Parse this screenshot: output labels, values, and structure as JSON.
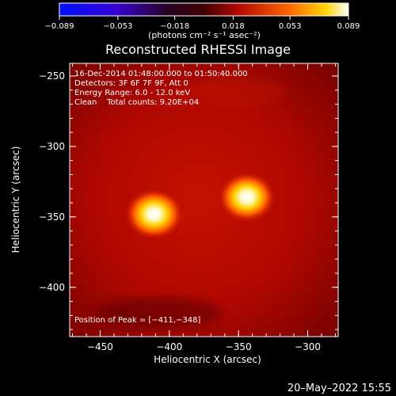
{
  "chart_data": {
    "type": "heatmap",
    "title": "Reconstructed RHESSI Image",
    "xlabel": "Heliocentric X (arcsec)",
    "ylabel": "Heliocentric Y (arcsec)",
    "xlim": [
      -472,
      -278
    ],
    "ylim": [
      -435,
      -241
    ],
    "x_ticks": [
      -450,
      -400,
      -350,
      -300
    ],
    "x_tick_labels": [
      "−450",
      "−400",
      "−350",
      "−300"
    ],
    "y_ticks": [
      -250,
      -300,
      -350,
      -400
    ],
    "y_tick_labels": [
      "−250",
      "−300",
      "−350",
      "−400"
    ],
    "colorbar": {
      "min": -0.089,
      "max": 0.089,
      "ticks": [
        -0.089,
        -0.053,
        -0.018,
        0.018,
        0.053,
        0.089
      ],
      "tick_labels": [
        "−0.089",
        "−0.053",
        "−0.018",
        "0.018",
        "0.053",
        "0.089"
      ],
      "label": "(photons cm⁻² s⁻¹ asec⁻²)"
    },
    "annotations": [
      "16-Dec-2014 01:48:00.000 to 01:50:40.000",
      "Detectors: 3F 6F 7F 9F, Att 0",
      "Energy Range: 6.0 - 12.0 keV",
      "Clean    Total counts: 9.20E+04"
    ],
    "peak_label": "Position of Peak = [−411,−348]",
    "sources": [
      {
        "x": -411,
        "y": -348,
        "intensity": 0.089
      },
      {
        "x": -344,
        "y": -336,
        "intensity": 0.082
      }
    ],
    "colors": {
      "background": "#000000",
      "map_base": "#b50800",
      "source_core": "#ffffff"
    }
  },
  "footer": {
    "date": "20–May–2022 15:55"
  }
}
